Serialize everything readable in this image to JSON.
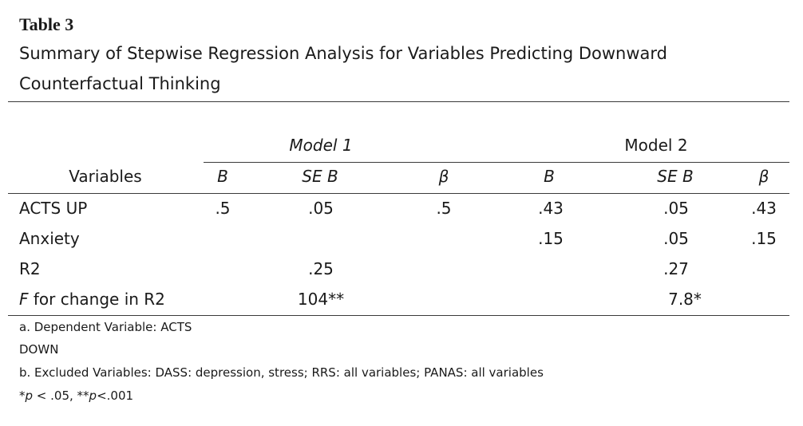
{
  "title": "Table 3",
  "subtitle": {
    "line1": "Summary of Stepwise Regression Analysis for Variables Predicting Downward",
    "line2": "Counterfactual Thinking"
  },
  "models": {
    "model1": "Model 1",
    "model2": "Model 2"
  },
  "columns": {
    "variables": "Variables",
    "b1": "B",
    "seb1": "SE B",
    "beta1": "β",
    "b2": "B",
    "seb2": "SE B",
    "beta2": "β"
  },
  "rows": [
    {
      "label": "ACTS UP",
      "b1": ".5",
      "seb1": ".05",
      "beta1": ".5",
      "b2": ".43",
      "seb2": ".05",
      "beta2": ".43"
    },
    {
      "label": "Anxiety",
      "b1": "",
      "seb1": "",
      "beta1": "",
      "b2": ".15",
      "seb2": ".05",
      "beta2": ".15"
    },
    {
      "label": "R2",
      "b1": "",
      "seb1": ".25",
      "beta1": "",
      "b2": "",
      "seb2": ".27",
      "beta2": ""
    },
    {
      "label_italic": "F",
      "label": " for change in R2",
      "b1": "",
      "seb1": "104**",
      "beta1": "",
      "b2": "",
      "seb2": "7.8*",
      "beta2": ""
    }
  ],
  "notes": {
    "a_line1": "a. Dependent Variable: ACTS",
    "a_line2": "DOWN",
    "b": "b. Excluded Variables: DASS: depression, stress; RRS: all variables; PANAS: all variables",
    "sig_p1": "p",
    "sig_t1": " < .05, **",
    "sig_p2": "p",
    "sig_t2": "<.001",
    "sig_star": "*"
  }
}
